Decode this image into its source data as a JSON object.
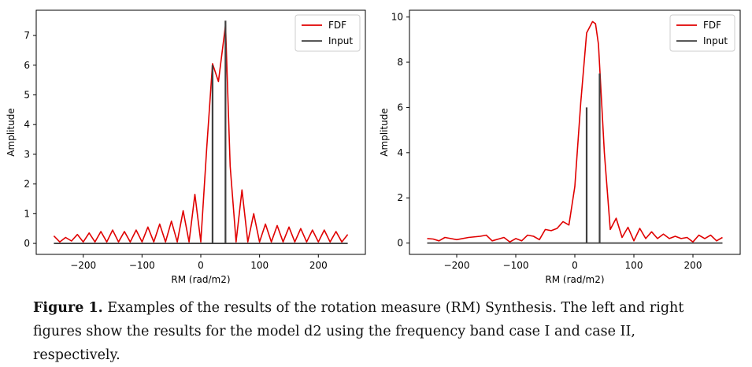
{
  "caption": {
    "label": "Figure 1.",
    "text": "Examples of the results of the rotation measure (RM) Synthesis. The left and right figures show the results for the model d2 using the frequency band case I and case II, respectively."
  },
  "colors": {
    "fdf": "#e00000",
    "input": "#404040",
    "axis": "#000000"
  },
  "chart_data": [
    {
      "type": "line",
      "xlabel": "RM (rad/m2)",
      "ylabel": "Amplitude",
      "xlim": [
        -280,
        280
      ],
      "ylim": [
        -0.37,
        7.85
      ],
      "xticks": [
        -200,
        -100,
        0,
        100,
        200
      ],
      "yticks": [
        0,
        1,
        2,
        3,
        4,
        5,
        6,
        7
      ],
      "legend": {
        "placement": "top-right",
        "entries": [
          "FDF",
          "Input"
        ]
      },
      "series": [
        {
          "name": "FDF",
          "x": [
            -250,
            -240,
            -230,
            -220,
            -210,
            -200,
            -190,
            -180,
            -170,
            -160,
            -150,
            -140,
            -130,
            -120,
            -110,
            -100,
            -90,
            -80,
            -70,
            -60,
            -50,
            -40,
            -30,
            -20,
            -10,
            0,
            10,
            20,
            30,
            42,
            50,
            60,
            70,
            80,
            90,
            100,
            110,
            120,
            130,
            140,
            150,
            160,
            170,
            180,
            190,
            200,
            210,
            220,
            230,
            240,
            250
          ],
          "y": [
            0.25,
            0.05,
            0.2,
            0.08,
            0.3,
            0.05,
            0.35,
            0.05,
            0.4,
            0.05,
            0.45,
            0.05,
            0.4,
            0.05,
            0.45,
            0.05,
            0.55,
            0.05,
            0.65,
            0.05,
            0.75,
            0.05,
            1.1,
            0.05,
            1.65,
            0.05,
            3.2,
            6.05,
            5.45,
            7.35,
            2.6,
            0.05,
            1.8,
            0.05,
            1.0,
            0.05,
            0.65,
            0.05,
            0.6,
            0.05,
            0.55,
            0.05,
            0.5,
            0.05,
            0.45,
            0.05,
            0.45,
            0.05,
            0.4,
            0.05,
            0.3
          ]
        },
        {
          "name": "Input",
          "type": "impulse",
          "x": [
            20,
            42
          ],
          "y": [
            6.0,
            7.5
          ],
          "range": [
            -250,
            250
          ]
        }
      ]
    },
    {
      "type": "line",
      "xlabel": "RM (rad/m2)",
      "ylabel": "Amplitude",
      "xlim": [
        -280,
        280
      ],
      "ylim": [
        -0.5,
        10.3
      ],
      "xticks": [
        -200,
        -100,
        0,
        100,
        200
      ],
      "yticks": [
        0,
        2,
        4,
        6,
        8,
        10
      ],
      "legend": {
        "placement": "top-right",
        "entries": [
          "FDF",
          "Input"
        ]
      },
      "series": [
        {
          "name": "FDF",
          "x": [
            -250,
            -240,
            -230,
            -220,
            -210,
            -200,
            -180,
            -160,
            -150,
            -140,
            -120,
            -110,
            -100,
            -90,
            -80,
            -70,
            -60,
            -50,
            -40,
            -30,
            -20,
            -10,
            0,
            10,
            20,
            30,
            35,
            40,
            50,
            60,
            70,
            80,
            90,
            100,
            110,
            120,
            130,
            140,
            150,
            160,
            170,
            180,
            190,
            200,
            210,
            220,
            230,
            240,
            250
          ],
          "y": [
            0.2,
            0.18,
            0.1,
            0.25,
            0.2,
            0.15,
            0.25,
            0.3,
            0.35,
            0.1,
            0.25,
            0.05,
            0.2,
            0.1,
            0.35,
            0.3,
            0.15,
            0.6,
            0.55,
            0.65,
            0.95,
            0.8,
            2.5,
            6.2,
            9.3,
            9.8,
            9.7,
            8.8,
            4.0,
            0.6,
            1.1,
            0.25,
            0.7,
            0.1,
            0.65,
            0.2,
            0.5,
            0.2,
            0.4,
            0.2,
            0.3,
            0.2,
            0.25,
            0.05,
            0.35,
            0.2,
            0.35,
            0.1,
            0.25
          ]
        },
        {
          "name": "Input",
          "type": "impulse",
          "x": [
            20,
            42
          ],
          "y": [
            6.0,
            7.5
          ],
          "range": [
            -250,
            250
          ]
        }
      ]
    }
  ]
}
